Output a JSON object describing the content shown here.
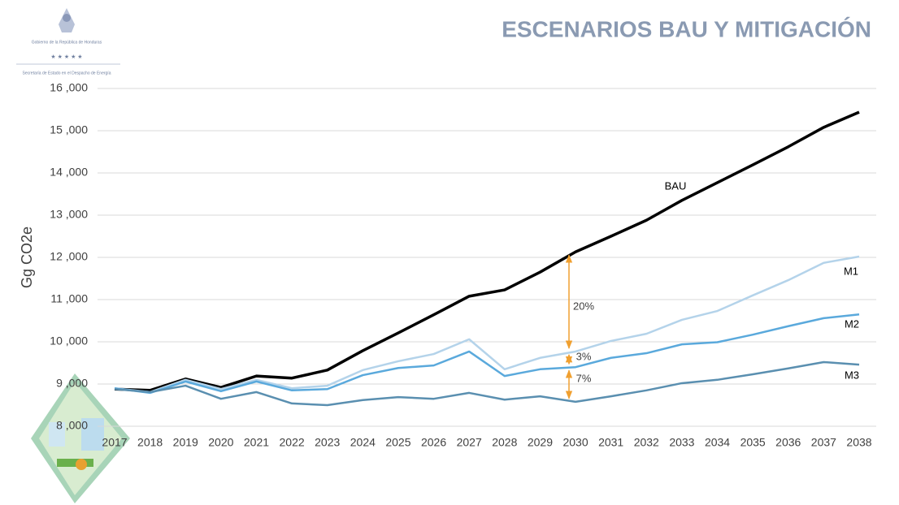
{
  "logo_text": [
    "Gobierno de la República de Honduras",
    "Secretaría de Estado en el Despacho de Energía"
  ],
  "chart_data": {
    "type": "line",
    "title": "ESCENARIOS BAU Y MITIGACIÓN",
    "y_label": "Gg CO2e",
    "categories": [
      "2017",
      "2018",
      "2019",
      "2020",
      "2021",
      "2022",
      "2023",
      "2024",
      "2025",
      "2026",
      "2027",
      "2028",
      "2029",
      "2030",
      "2031",
      "2032",
      "2033",
      "2034",
      "2035",
      "2036",
      "2037",
      "2038"
    ],
    "series": [
      {
        "name": "BAU",
        "color": "#000000",
        "values": [
          8880,
          8850,
          9120,
          8920,
          9190,
          9140,
          9330,
          9790,
          10210,
          10640,
          11080,
          11230,
          11650,
          12130,
          12500,
          12880,
          13350,
          13770,
          14190,
          14620,
          15080,
          15440
        ]
      },
      {
        "name": "M1",
        "color": "#b4d3ea",
        "values": [
          8900,
          8810,
          9100,
          8880,
          9100,
          8900,
          8960,
          9330,
          9540,
          9710,
          10060,
          9350,
          9620,
          9770,
          10020,
          10190,
          10520,
          10730,
          11100,
          11460,
          11870,
          12020
        ]
      },
      {
        "name": "M2",
        "color": "#5aa9dc",
        "values": [
          8900,
          8790,
          9060,
          8830,
          9060,
          8850,
          8880,
          9210,
          9380,
          9440,
          9770,
          9190,
          9350,
          9400,
          9620,
          9730,
          9940,
          9990,
          10170,
          10370,
          10560,
          10650
        ]
      },
      {
        "name": "M3",
        "color": "#5a8fb0",
        "values": [
          8880,
          8810,
          8960,
          8650,
          8810,
          8540,
          8500,
          8620,
          8690,
          8650,
          8790,
          8630,
          8710,
          8580,
          8710,
          8850,
          9020,
          9100,
          9230,
          9370,
          9520,
          9460
        ]
      }
    ],
    "annotations": [
      "20%",
      "3%",
      "7%"
    ],
    "ylim": [
      8000,
      16000
    ],
    "yticks": [
      {
        "value": 8000,
        "label": "8 ,000"
      },
      {
        "value": 9000,
        "label": "9 ,000"
      },
      {
        "value": 10000,
        "label": "10 ,000"
      },
      {
        "value": 11000,
        "label": "11 ,000"
      },
      {
        "value": 12000,
        "label": "12 ,000"
      },
      {
        "value": 13000,
        "label": "13 ,000"
      },
      {
        "value": 14000,
        "label": "14 ,000"
      },
      {
        "value": 15000,
        "label": "15 ,000"
      },
      {
        "value": 16000,
        "label": "16 ,000"
      }
    ],
    "grid": true,
    "annotation_color": "#f0a030"
  }
}
